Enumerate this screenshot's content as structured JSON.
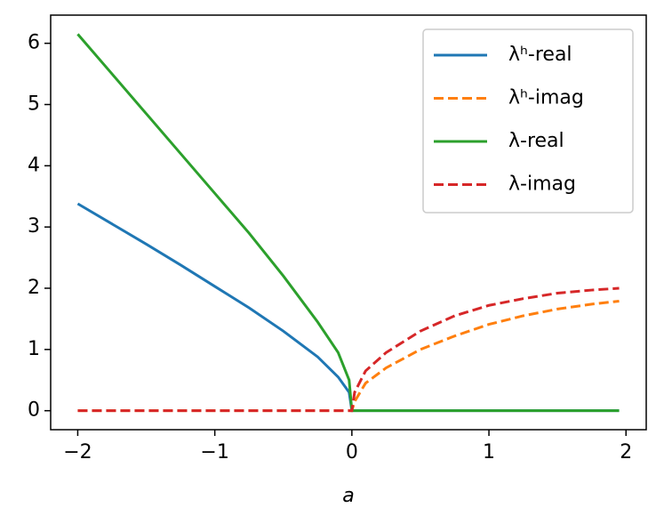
{
  "chart_data": {
    "type": "line",
    "x_label": "a",
    "x": [
      -2,
      -1.75,
      -1.5,
      -1.25,
      -1,
      -0.75,
      -0.5,
      -0.25,
      -0.1,
      -0.02,
      0,
      0.02,
      0.1,
      0.25,
      0.5,
      0.75,
      1,
      1.25,
      1.5,
      1.75,
      1.95
    ],
    "series": [
      {
        "name": "λʰ-real",
        "color": "#1f77b4",
        "dashed": false,
        "values": [
          3.38,
          3.05,
          2.72,
          2.38,
          2.03,
          1.68,
          1.3,
          0.88,
          0.55,
          0.3,
          0,
          0,
          0,
          0,
          0,
          0,
          0,
          0,
          0,
          0,
          0
        ]
      },
      {
        "name": "λʰ-imag",
        "color": "#ff7f0e",
        "dashed": true,
        "values": [
          0,
          0,
          0,
          0,
          0,
          0,
          0,
          0,
          0,
          0,
          0,
          0.15,
          0.45,
          0.7,
          1.0,
          1.22,
          1.41,
          1.55,
          1.66,
          1.74,
          1.79
        ]
      },
      {
        "name": "λ-real",
        "color": "#2ca02c",
        "dashed": false,
        "values": [
          6.15,
          5.5,
          4.85,
          4.2,
          3.55,
          2.9,
          2.2,
          1.45,
          0.95,
          0.5,
          0,
          0,
          0,
          0,
          0,
          0,
          0,
          0,
          0,
          0,
          0
        ]
      },
      {
        "name": "λ-imag",
        "color": "#d62728",
        "dashed": true,
        "values": [
          0,
          0,
          0,
          0,
          0,
          0,
          0,
          0,
          0,
          0,
          0,
          0.3,
          0.65,
          0.95,
          1.3,
          1.55,
          1.72,
          1.83,
          1.92,
          1.97,
          2.0
        ]
      }
    ],
    "xlim": [
      -2.1975,
      2.1475
    ],
    "ylim": [
      -0.31,
      6.46
    ],
    "xticks": [
      {
        "value": -2,
        "label": "−2"
      },
      {
        "value": -1,
        "label": "−1"
      },
      0,
      1,
      2
    ],
    "yticks": [
      0,
      1,
      2,
      3,
      4,
      5,
      6
    ],
    "legend": "upper right"
  }
}
